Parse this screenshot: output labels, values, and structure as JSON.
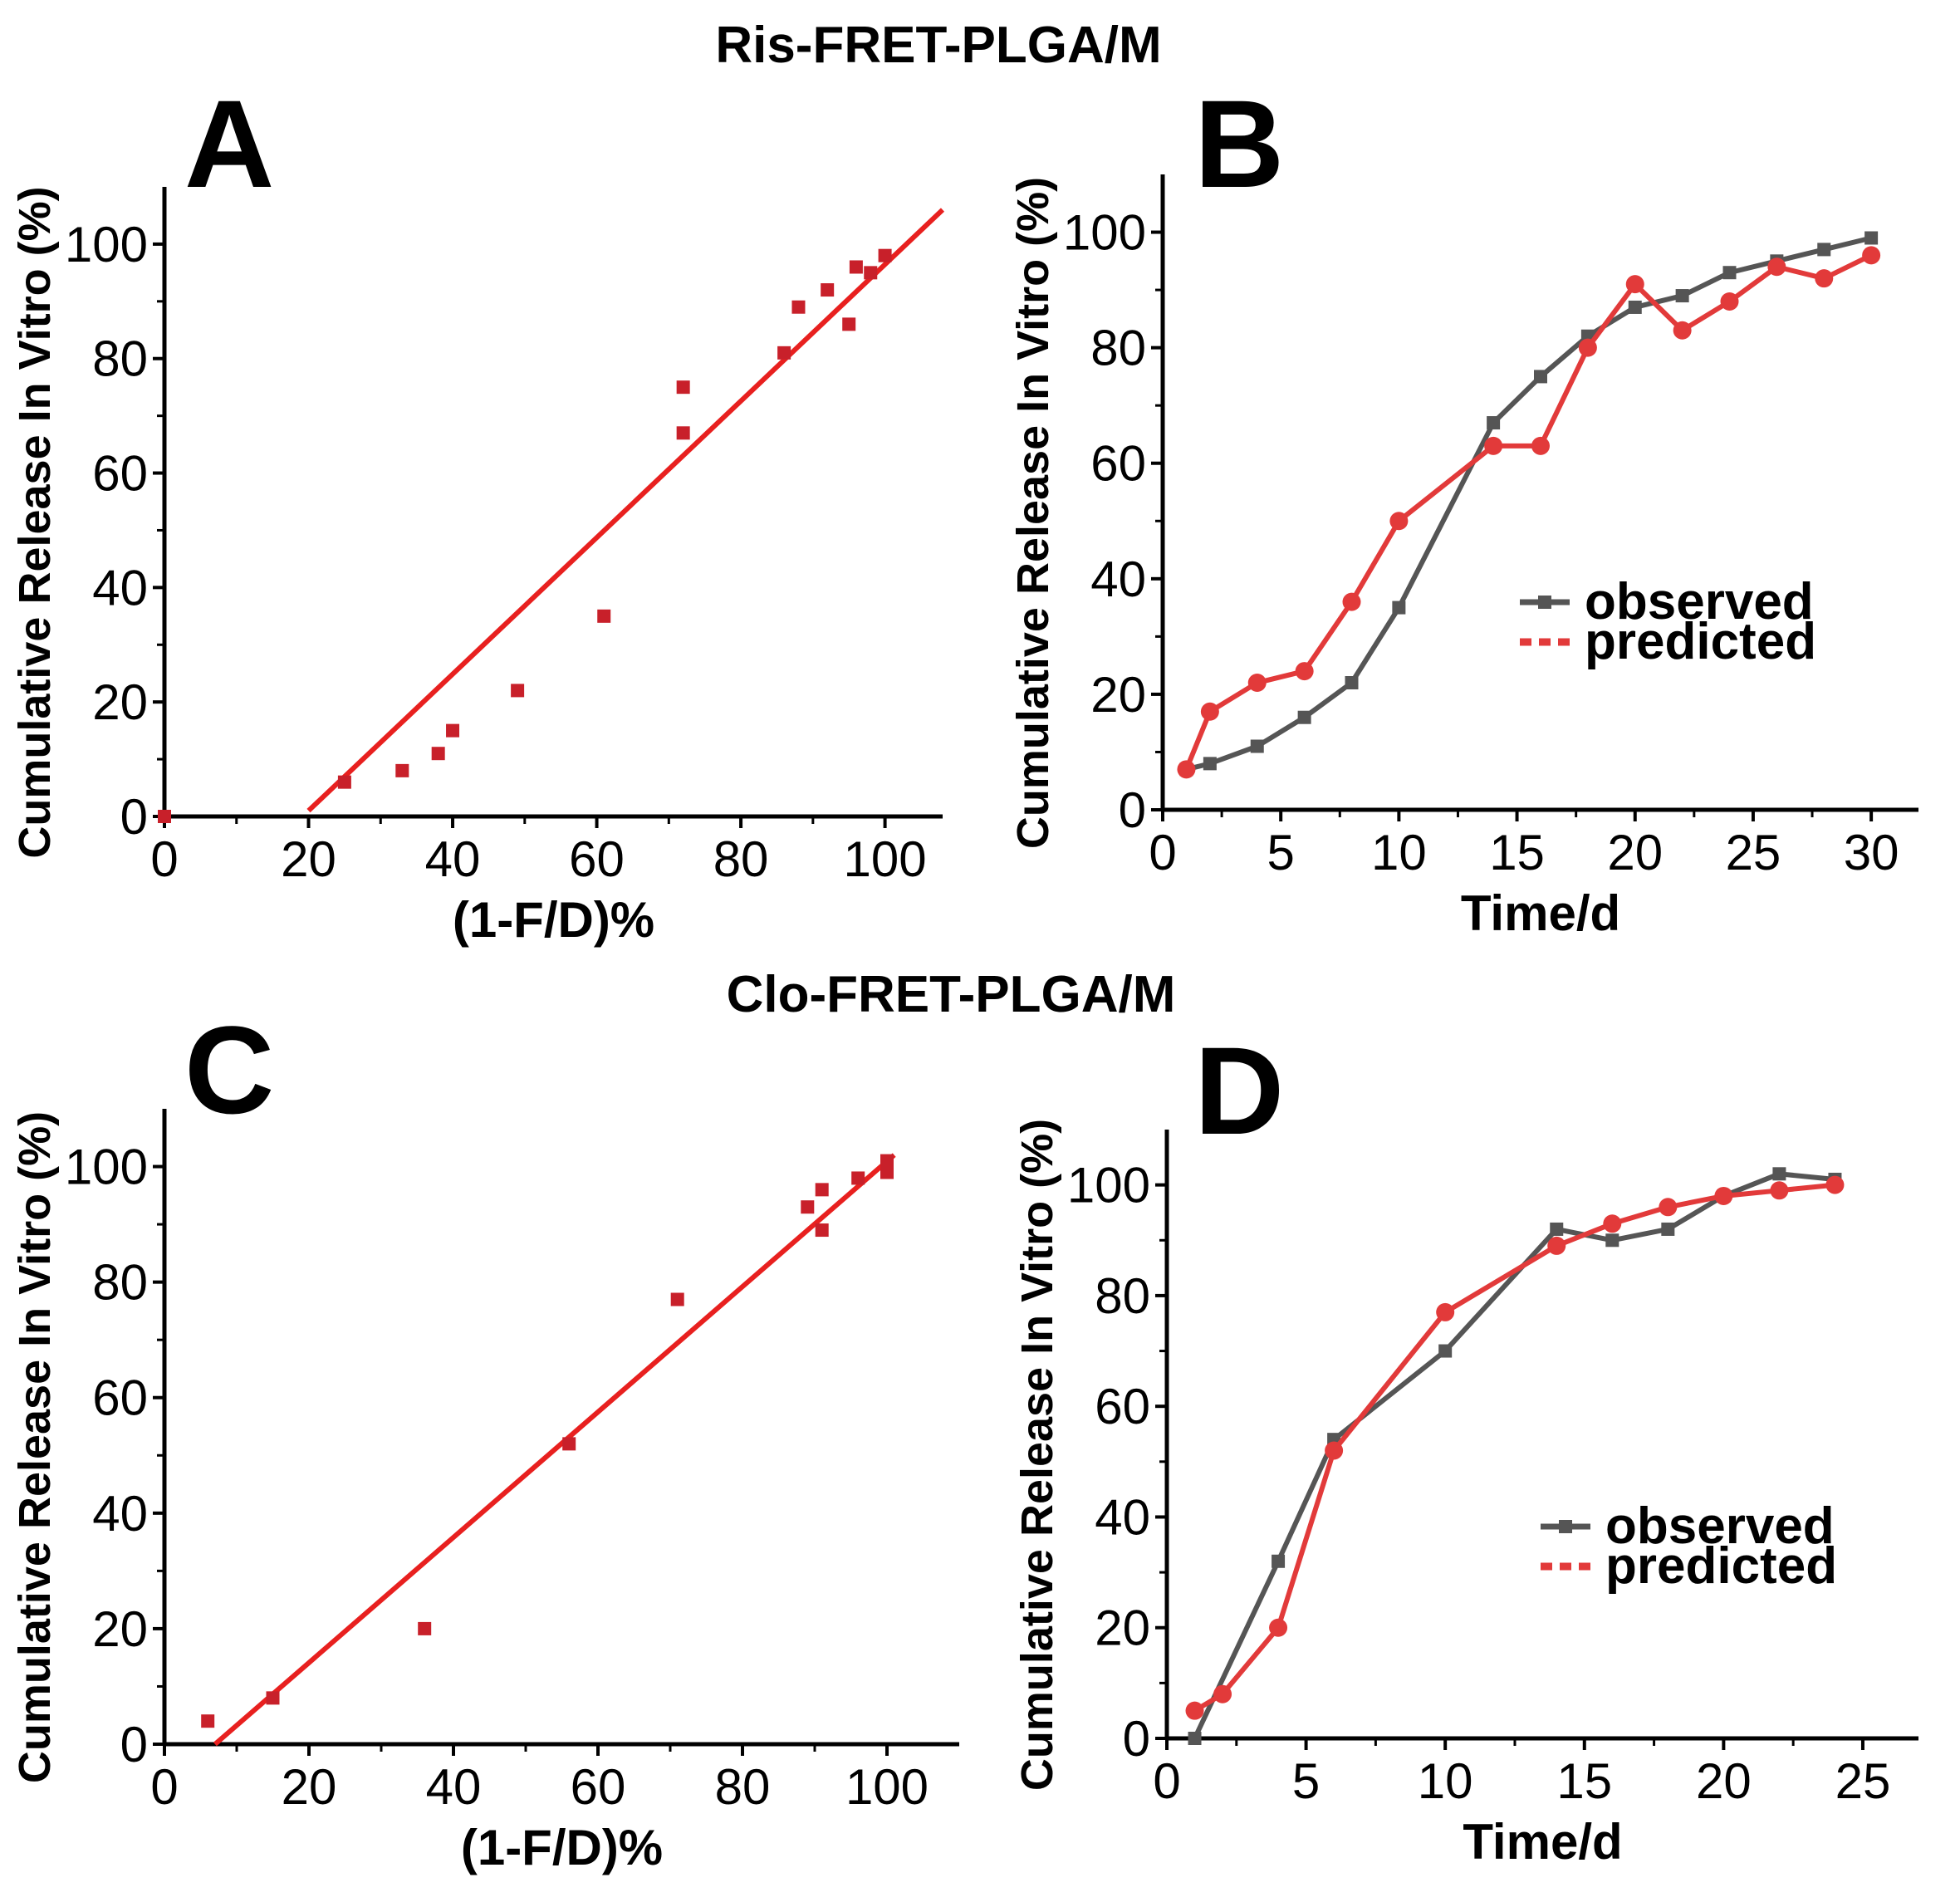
{
  "titles": {
    "top": "Ris-FRET-PLGA/M",
    "bottom": "Clo-FRET-PLGA/M"
  },
  "colors": {
    "fit": "#e8201f",
    "scatter": "#c8202a",
    "observed": "#555555",
    "predicted": "#e23a3a"
  },
  "chart_data": [
    {
      "panel": "A",
      "type": "scatter",
      "xlabel": "(1-F/D)%",
      "ylabel": "Cumulative Release In Vitro (%)",
      "xlim": [
        0,
        108
      ],
      "ylim": [
        0,
        110
      ],
      "xticks": [
        0,
        20,
        40,
        60,
        80,
        100
      ],
      "yticks": [
        0,
        20,
        40,
        60,
        80,
        100
      ],
      "points": [
        [
          0,
          0
        ],
        [
          25,
          6
        ],
        [
          33,
          8
        ],
        [
          38,
          11
        ],
        [
          40,
          15
        ],
        [
          49,
          22
        ],
        [
          61,
          35
        ],
        [
          72,
          67
        ],
        [
          72,
          75
        ],
        [
          86,
          81
        ],
        [
          88,
          89
        ],
        [
          92,
          92
        ],
        [
          95,
          86
        ],
        [
          96,
          96
        ],
        [
          98,
          95
        ],
        [
          100,
          98
        ]
      ],
      "fit_line": [
        [
          20,
          1
        ],
        [
          108,
          106
        ]
      ]
    },
    {
      "panel": "B",
      "type": "line",
      "xlabel": "Time/d",
      "ylabel": "Cumulative Release In Vitro (%)",
      "xlim": [
        0,
        32
      ],
      "ylim": [
        0,
        110
      ],
      "xticks": [
        0,
        5,
        10,
        15,
        20,
        25,
        30
      ],
      "yticks": [
        0,
        20,
        40,
        60,
        80,
        100
      ],
      "series": [
        {
          "name": "observed",
          "x": [
            1,
            2,
            4,
            6,
            8,
            10,
            14,
            16,
            18,
            20,
            22,
            24,
            26,
            28,
            30
          ],
          "y": [
            7,
            8,
            11,
            16,
            22,
            35,
            67,
            75,
            82,
            87,
            89,
            93,
            95,
            97,
            99
          ]
        },
        {
          "name": "predicted",
          "x": [
            1,
            2,
            4,
            6,
            8,
            10,
            14,
            16,
            18,
            20,
            22,
            24,
            26,
            28,
            30
          ],
          "y": [
            7,
            17,
            22,
            24,
            36,
            50,
            63,
            63,
            80,
            91,
            83,
            88,
            94,
            92,
            96
          ]
        }
      ],
      "legend": [
        "observed",
        "predicted"
      ]
    },
    {
      "panel": "C",
      "type": "scatter",
      "xlabel": "(1-F/D)%",
      "ylabel": "Cumulative Release In Vitro (%)",
      "xlim": [
        0,
        110
      ],
      "ylim": [
        0,
        110
      ],
      "xticks": [
        0,
        20,
        40,
        60,
        80,
        100
      ],
      "yticks": [
        0,
        20,
        40,
        60,
        80,
        100
      ],
      "points": [
        [
          6,
          4
        ],
        [
          15,
          8
        ],
        [
          36,
          20
        ],
        [
          56,
          52
        ],
        [
          71,
          77
        ],
        [
          89,
          93
        ],
        [
          91,
          96
        ],
        [
          91,
          89
        ],
        [
          96,
          98
        ],
        [
          100,
          101
        ],
        [
          100,
          99
        ]
      ],
      "fit_line": [
        [
          7,
          0
        ],
        [
          101,
          102
        ]
      ]
    },
    {
      "panel": "D",
      "type": "line",
      "xlabel": "Time/d",
      "ylabel": "Cumulative Release In Vitro (%)",
      "xlim": [
        0,
        27
      ],
      "ylim": [
        0,
        110
      ],
      "xticks": [
        0,
        5,
        10,
        15,
        20,
        25
      ],
      "yticks": [
        0,
        20,
        40,
        60,
        80,
        100
      ],
      "series": [
        {
          "name": "observed",
          "x": [
            1,
            4,
            6,
            10,
            14,
            16,
            18,
            20,
            22,
            24
          ],
          "y": [
            0,
            32,
            54,
            70,
            92,
            90,
            92,
            98,
            102,
            101
          ]
        },
        {
          "name": "predicted",
          "x": [
            1,
            2,
            4,
            6,
            10,
            14,
            16,
            18,
            20,
            22,
            24
          ],
          "y": [
            5,
            8,
            20,
            52,
            77,
            89,
            93,
            96,
            98,
            99,
            100
          ]
        }
      ],
      "legend": [
        "observed",
        "predicted"
      ]
    }
  ]
}
